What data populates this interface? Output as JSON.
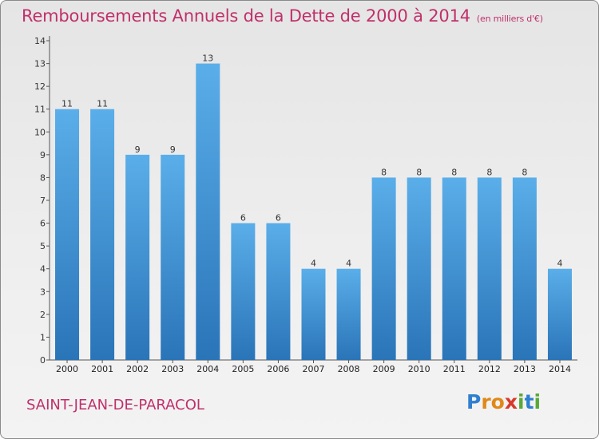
{
  "chart_data": {
    "type": "bar",
    "title": "Remboursements Annuels de la Dette de 2000 à 2014",
    "subtitle": "(en milliers d'€)",
    "categories": [
      "2000",
      "2001",
      "2002",
      "2003",
      "2004",
      "2005",
      "2006",
      "2007",
      "2008",
      "2009",
      "2010",
      "2011",
      "2012",
      "2013",
      "2014"
    ],
    "values": [
      11,
      11,
      9,
      9,
      13,
      6,
      6,
      4,
      4,
      8,
      8,
      8,
      8,
      8,
      4
    ],
    "ylim": [
      0,
      14
    ],
    "yticks": [
      "0",
      "1",
      "2",
      "3",
      "4",
      "5",
      "6",
      "7",
      "8",
      "9",
      "10",
      "11",
      "12",
      "13",
      "14"
    ],
    "xlabel": "",
    "ylabel": "",
    "grid": false,
    "bar_color": "#4a9fe0",
    "text_color": "#c0306a"
  },
  "footer": {
    "commune": "SAINT-JEAN-DE-PARACOL",
    "logo_letters": [
      {
        "ch": "P",
        "color": "#2f7fd0"
      },
      {
        "ch": "r",
        "color": "#e0881a"
      },
      {
        "ch": "o",
        "color": "#e0881a"
      },
      {
        "ch": "x",
        "color": "#d63a2a"
      },
      {
        "ch": "i",
        "color": "#5aa83a"
      },
      {
        "ch": "t",
        "color": "#2f7fd0"
      },
      {
        "ch": "i",
        "color": "#5aa83a"
      }
    ]
  }
}
